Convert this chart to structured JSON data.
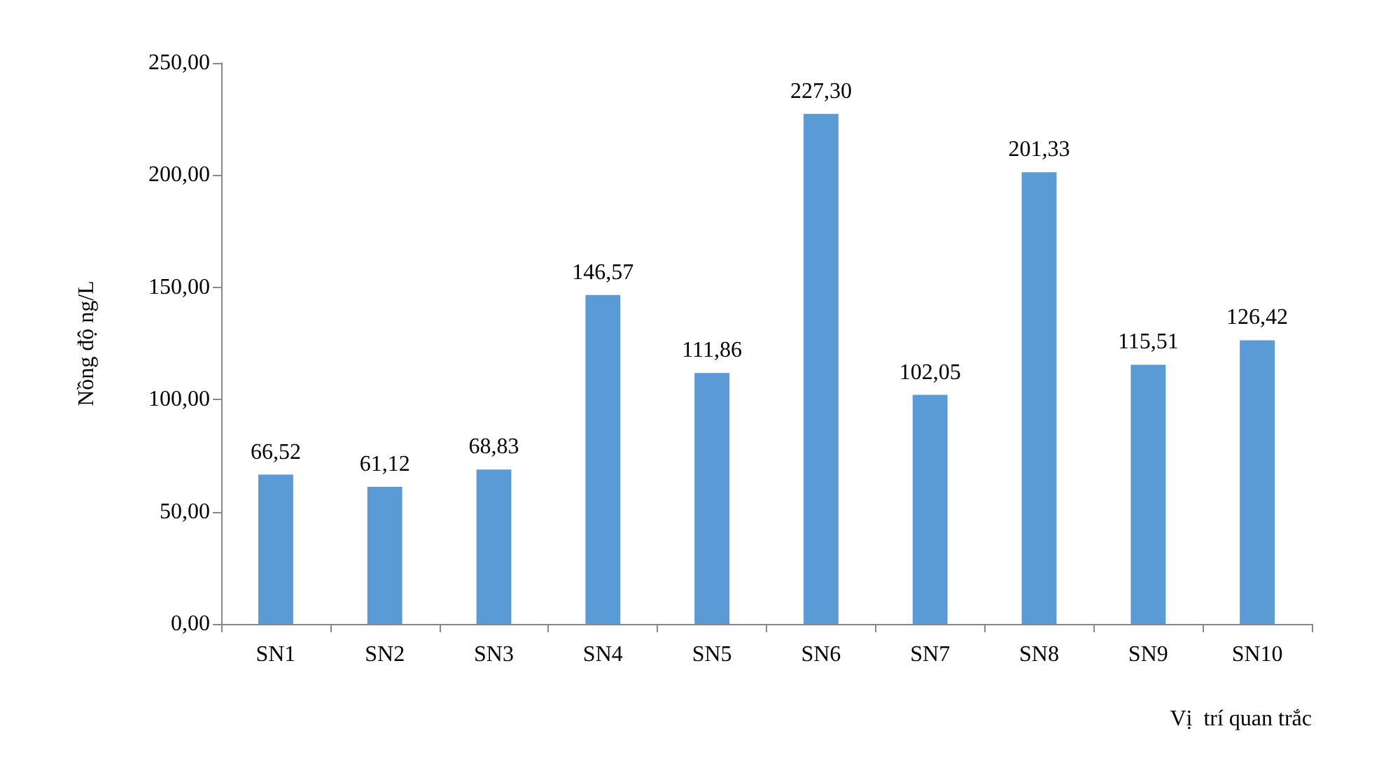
{
  "chart_data": {
    "type": "bar",
    "xlabel": "Vị  trí quan trắc",
    "ylabel": "Nồng độ ng/L",
    "categories": [
      "SN1",
      "SN2",
      "SN3",
      "SN4",
      "SN5",
      "SN6",
      "SN7",
      "SN8",
      "SN9",
      "SN10"
    ],
    "values": [
      66.52,
      61.12,
      68.83,
      146.57,
      111.86,
      227.3,
      102.05,
      201.33,
      115.51,
      126.42
    ],
    "value_labels": [
      "66,52",
      "61,12",
      "68,83",
      "146,57",
      "111,86",
      "227,30",
      "102,05",
      "201,33",
      "115,51",
      "126,42"
    ],
    "color": "#5b9bd5",
    "ylim": [
      0,
      250
    ],
    "yticks": [
      {
        "value": 0,
        "label": "0,00"
      },
      {
        "value": 50,
        "label": "50,00"
      },
      {
        "value": 100,
        "label": "100,00"
      },
      {
        "value": 150,
        "label": "150,00"
      },
      {
        "value": 200,
        "label": "200,00"
      },
      {
        "value": 250,
        "label": "250,00"
      }
    ],
    "grid": false
  }
}
